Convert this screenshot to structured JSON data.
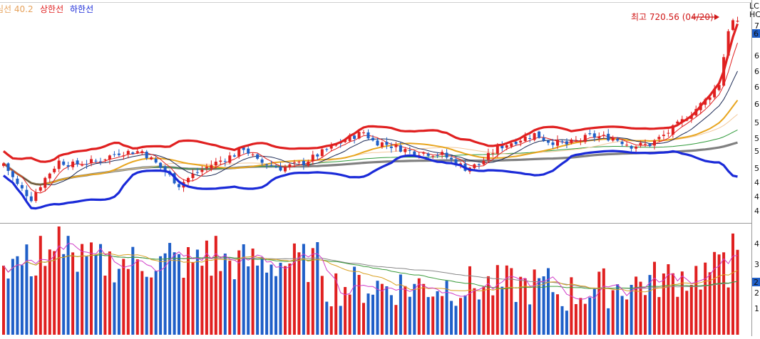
{
  "legend": [
    {
      "label": "심선 40.2",
      "color": "#e6a15a"
    },
    {
      "label": "상한선",
      "color": "#e02020"
    },
    {
      "label": "하한선",
      "color": "#1a2ad8"
    }
  ],
  "right_axis": {
    "price_labels": [
      "7",
      "6",
      "6",
      "6",
      "6",
      "5",
      "5",
      "5",
      "5",
      "4",
      "4",
      "4",
      "4"
    ],
    "current_marker": "6",
    "corner_tags": [
      {
        "text": "LC",
        "color": "#e02020"
      },
      {
        "text": "HC",
        "color": "#1a2ad8"
      }
    ],
    "volume_labels": [
      "4",
      "3",
      "2",
      "1"
    ],
    "volume_marker": "2"
  },
  "annotation": {
    "text": "최고 720.56 (04/20)",
    "color": "#d01818"
  },
  "colors": {
    "up": "#e02020",
    "down": "#1f5fc8",
    "upper_band": "#e02020",
    "lower_band": "#1a2ad8",
    "ma_gray": "#808080",
    "ma_orange": "#e8a51e",
    "ma_light": "#f3c99a",
    "ma_green": "#2f9a3a",
    "ma_navy": "#1c2a55",
    "vol_pink": "#d03cc8",
    "vol_gold": "#d9a020",
    "vol_green": "#3a9a3a",
    "vol_gray": "#888888"
  },
  "chart_data": {
    "type": "candlestick",
    "price_range": [
      415,
      735
    ],
    "n_periods": 160,
    "anchors": [
      [
        0,
        502
      ],
      [
        3,
        470
      ],
      [
        6,
        450
      ],
      [
        9,
        480
      ],
      [
        12,
        505
      ],
      [
        15,
        500
      ],
      [
        20,
        505
      ],
      [
        25,
        518
      ],
      [
        30,
        520
      ],
      [
        35,
        490
      ],
      [
        38,
        470
      ],
      [
        41,
        485
      ],
      [
        45,
        500
      ],
      [
        50,
        515
      ],
      [
        52,
        525
      ],
      [
        55,
        505
      ],
      [
        60,
        495
      ],
      [
        65,
        503
      ],
      [
        70,
        522
      ],
      [
        75,
        540
      ],
      [
        78,
        548
      ],
      [
        80,
        535
      ],
      [
        83,
        530
      ],
      [
        88,
        520
      ],
      [
        95,
        515
      ],
      [
        100,
        495
      ],
      [
        103,
        500
      ],
      [
        107,
        525
      ],
      [
        112,
        538
      ],
      [
        115,
        545
      ],
      [
        118,
        535
      ],
      [
        122,
        530
      ],
      [
        127,
        542
      ],
      [
        132,
        540
      ],
      [
        136,
        528
      ],
      [
        140,
        530
      ],
      [
        144,
        548
      ],
      [
        148,
        570
      ],
      [
        152,
        595
      ],
      [
        155,
        620
      ],
      [
        157,
        700
      ],
      [
        158,
        712
      ],
      [
        159,
        708
      ]
    ],
    "volume_range": [
      0,
      4.6
    ],
    "high_label": {
      "value": 720.56,
      "date": "04/20"
    }
  }
}
